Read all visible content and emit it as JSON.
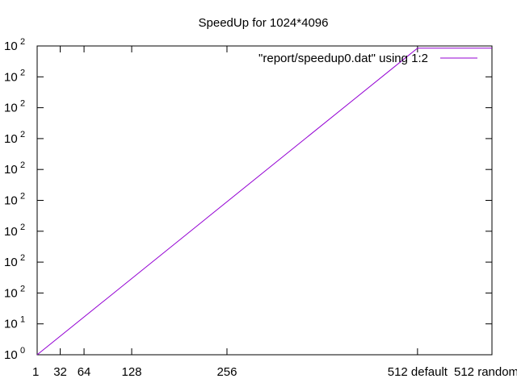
{
  "chart_data": {
    "type": "line",
    "title": "SpeedUp for 1024*4096",
    "xlabel": "",
    "ylabel": "",
    "y_scale": "log",
    "x_tick_labels": [
      "1",
      "32",
      "64",
      "128",
      "256",
      "512 default",
      "512 random"
    ],
    "x_tick_values": [
      1,
      32,
      64,
      128,
      256,
      512,
      612
    ],
    "xlim": [
      1,
      612
    ],
    "y_tick_labels": [
      {
        "base": "10",
        "exp": "0"
      },
      {
        "base": "10",
        "exp": "1"
      },
      {
        "base": "10",
        "exp": "2"
      },
      {
        "base": "10",
        "exp": "2"
      },
      {
        "base": "10",
        "exp": "2"
      },
      {
        "base": "10",
        "exp": "2"
      },
      {
        "base": "10",
        "exp": "2"
      },
      {
        "base": "10",
        "exp": "2"
      },
      {
        "base": "10",
        "exp": "2"
      },
      {
        "base": "10",
        "exp": "2"
      },
      {
        "base": "10",
        "exp": "2"
      }
    ],
    "ylim_decades": [
      0,
      10
    ],
    "grid": false,
    "legend_position": "top-right",
    "series": [
      {
        "name": "\"report/speedup0.dat\" using 1:2",
        "color": "#9400d3",
        "x": [
          1,
          512,
          612
        ],
        "y_decades": [
          0,
          9.93,
          9.93
        ]
      }
    ]
  }
}
